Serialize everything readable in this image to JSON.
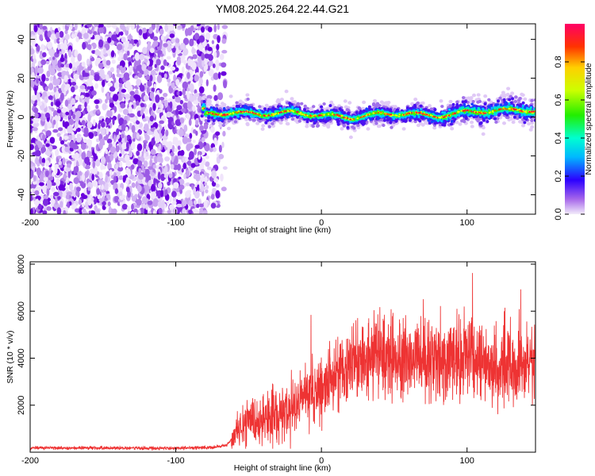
{
  "chart_data": [
    {
      "type": "heatmap",
      "title": "YM08.2025.264.22.44.G21",
      "xlabel": "Height of straight line (km)",
      "ylabel": "Frequency (Hz)",
      "xlim": [
        -200,
        147
      ],
      "ylim": [
        -50,
        48
      ],
      "xticks": [
        -200,
        -100,
        0,
        100
      ],
      "xtick_labels": [
        "-200",
        "-100",
        "0",
        "100"
      ],
      "yticks": [
        -40,
        -20,
        0,
        20,
        40
      ],
      "ytick_labels": [
        "-40",
        "-20",
        "0",
        "20",
        "40"
      ],
      "noise_region_x": [
        -200,
        -72
      ],
      "signal_region_x": [
        -82,
        147
      ],
      "signal_center_hz": [
        {
          "x": -80,
          "y": 1
        },
        {
          "x": -60,
          "y": 2
        },
        {
          "x": -40,
          "y": 2
        },
        {
          "x": -20,
          "y": 3
        },
        {
          "x": 0,
          "y": 1
        },
        {
          "x": 20,
          "y": -1
        },
        {
          "x": 40,
          "y": 1
        },
        {
          "x": 60,
          "y": 2
        },
        {
          "x": 80,
          "y": 1
        },
        {
          "x": 100,
          "y": 3
        },
        {
          "x": 120,
          "y": 3
        },
        {
          "x": 147,
          "y": 3
        }
      ],
      "colorbar": {
        "label": "Normalized spectral amplitude",
        "range": [
          0,
          1
        ],
        "ticks": [
          0.0,
          0.2,
          0.4,
          0.6,
          0.8
        ],
        "tick_labels": [
          "0.0",
          "0.2",
          "0.4",
          "0.6",
          "0.8"
        ]
      }
    },
    {
      "type": "line",
      "xlabel": "Height of straight line (km)",
      "ylabel": "SNR (10 * v/v)",
      "xlim": [
        -200,
        147
      ],
      "ylim": [
        0,
        8100
      ],
      "xticks": [
        -200,
        -100,
        0,
        100
      ],
      "xtick_labels": [
        "-200",
        "-100",
        "0",
        "100"
      ],
      "yticks": [
        2000,
        4000,
        6000,
        8000
      ],
      "ytick_labels": [
        "2000",
        "4000",
        "6000",
        "8000"
      ],
      "series": [
        {
          "name": "SNR",
          "color": "#ee3333",
          "trend": [
            {
              "x": -200,
              "y": 180
            },
            {
              "x": -150,
              "y": 180
            },
            {
              "x": -100,
              "y": 170
            },
            {
              "x": -75,
              "y": 200
            },
            {
              "x": -65,
              "y": 300
            },
            {
              "x": -55,
              "y": 1100
            },
            {
              "x": -40,
              "y": 1300
            },
            {
              "x": -25,
              "y": 1500
            },
            {
              "x": -15,
              "y": 2200
            },
            {
              "x": 0,
              "y": 2700
            },
            {
              "x": 10,
              "y": 3200
            },
            {
              "x": 20,
              "y": 3800
            },
            {
              "x": 40,
              "y": 4100
            },
            {
              "x": 60,
              "y": 3900
            },
            {
              "x": 80,
              "y": 3800
            },
            {
              "x": 100,
              "y": 4100
            },
            {
              "x": 120,
              "y": 3700
            },
            {
              "x": 147,
              "y": 3700
            }
          ]
        }
      ]
    }
  ]
}
